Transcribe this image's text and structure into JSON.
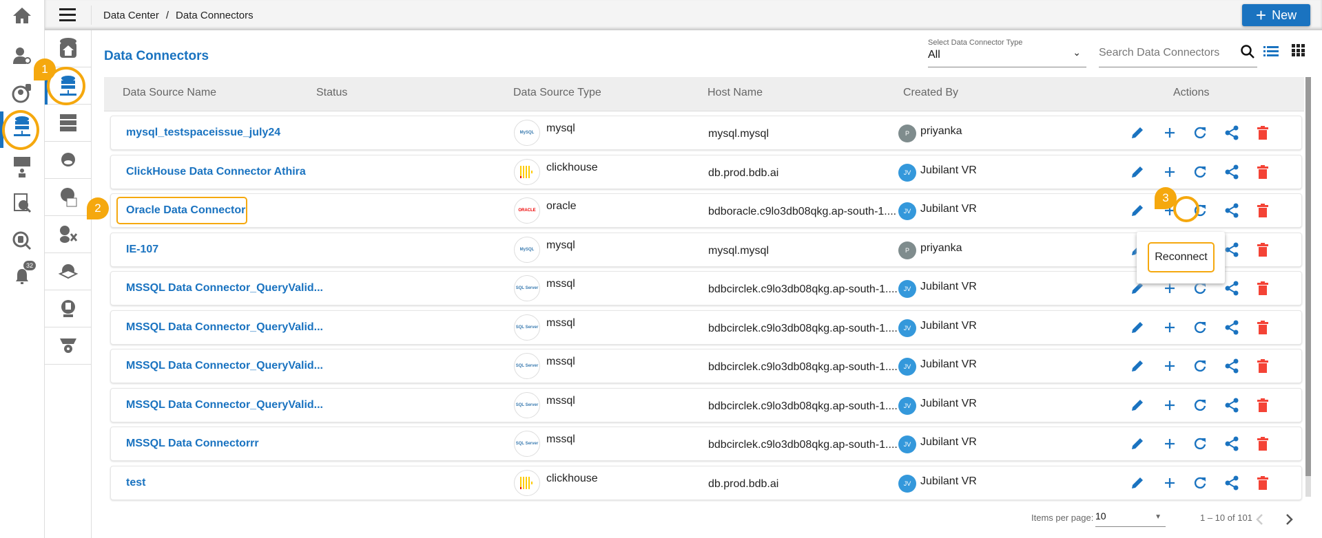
{
  "breadcrumb": {
    "items": [
      "Data Center",
      "Data Connectors"
    ],
    "separator": "/"
  },
  "new_button": {
    "label": "New"
  },
  "page_title": "Data Connectors",
  "filter": {
    "label": "Select Data Connector Type",
    "value": "All"
  },
  "search": {
    "placeholder": "Search Data Connectors"
  },
  "columns": [
    "Data Source Name",
    "Status",
    "Data Source Type",
    "Host Name",
    "Created By",
    "Actions"
  ],
  "rows": [
    {
      "name": "mysql_testspaceissue_july24",
      "type": "mysql",
      "host": "mysql.mysql",
      "initials": "P",
      "user": "priyanka"
    },
    {
      "name": "ClickHouse Data Connector Athira",
      "type": "clickhouse",
      "host": "db.prod.bdb.ai",
      "initials": "JV",
      "user": "Jubilant VR"
    },
    {
      "name": "Oracle Data Connector",
      "type": "oracle",
      "host": "bdboracle.c9lo3db08qkg.ap-south-1....",
      "initials": "JV",
      "user": "Jubilant VR"
    },
    {
      "name": "IE-107",
      "type": "mysql",
      "host": "mysql.mysql",
      "initials": "P",
      "user": "priyanka"
    },
    {
      "name": "MSSQL Data Connector_QueryValid...",
      "type": "mssql",
      "host": "bdbcirclek.c9lo3db08qkg.ap-south-1....",
      "initials": "JV",
      "user": "Jubilant VR"
    },
    {
      "name": "MSSQL Data Connector_QueryValid...",
      "type": "mssql",
      "host": "bdbcirclek.c9lo3db08qkg.ap-south-1....",
      "initials": "JV",
      "user": "Jubilant VR"
    },
    {
      "name": "MSSQL Data Connector_QueryValid...",
      "type": "mssql",
      "host": "bdbcirclek.c9lo3db08qkg.ap-south-1....",
      "initials": "JV",
      "user": "Jubilant VR"
    },
    {
      "name": "MSSQL Data Connector_QueryValid...",
      "type": "mssql",
      "host": "bdbcirclek.c9lo3db08qkg.ap-south-1....",
      "initials": "JV",
      "user": "Jubilant VR"
    },
    {
      "name": "MSSQL Data Connectorrr",
      "type": "mssql",
      "host": "bdbcirclek.c9lo3db08qkg.ap-south-1....",
      "initials": "JV",
      "user": "Jubilant VR"
    },
    {
      "name": "test",
      "type": "clickhouse",
      "host": "db.prod.bdb.ai",
      "initials": "JV",
      "user": "Jubilant VR"
    }
  ],
  "logos": {
    "mysql": "MySQL",
    "oracle": "ORACLE",
    "mssql": "SQL Server"
  },
  "tooltip": "Reconnect",
  "annotations": [
    "1",
    "2",
    "3"
  ],
  "notifications_count": "32",
  "pagination": {
    "label": "Items per page:",
    "per_page": "10",
    "range": "1 – 10 of 101"
  },
  "colors": {
    "accent": "#1a73c0",
    "delete": "#f44336",
    "highlight": "#f5a80e",
    "avatar_p": "#7f8c8d",
    "avatar_jv": "#3498db"
  }
}
